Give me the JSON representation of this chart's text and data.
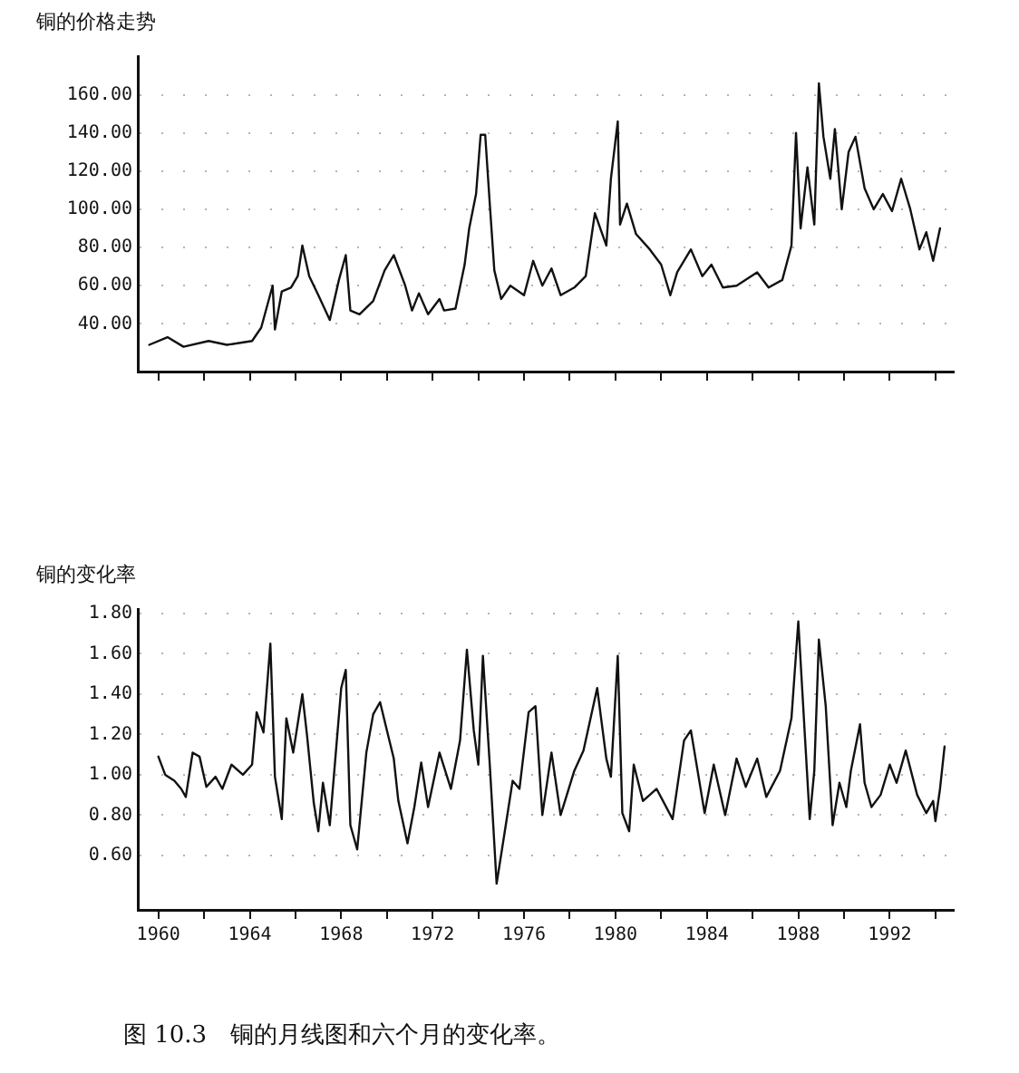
{
  "chart_data": [
    {
      "type": "line",
      "title": "铜的价格走势",
      "tick_labels": "y",
      "grid": "y",
      "marker": "none",
      "line_style": "solid",
      "xlim": [
        1959.1,
        1994.8
      ],
      "ylim": [
        15,
        180
      ],
      "xticks": [
        {
          "value": 1960,
          "label": null
        },
        {
          "value": 1962,
          "label": null
        },
        {
          "value": 1964,
          "label": null
        },
        {
          "value": 1966,
          "label": null
        },
        {
          "value": 1968,
          "label": null
        },
        {
          "value": 1970,
          "label": null
        },
        {
          "value": 1972,
          "label": null
        },
        {
          "value": 1974,
          "label": null
        },
        {
          "value": 1976,
          "label": null
        },
        {
          "value": 1978,
          "label": null
        },
        {
          "value": 1980,
          "label": null
        },
        {
          "value": 1982,
          "label": null
        },
        {
          "value": 1984,
          "label": null
        },
        {
          "value": 1986,
          "label": null
        },
        {
          "value": 1988,
          "label": null
        },
        {
          "value": 1990,
          "label": null
        },
        {
          "value": 1992,
          "label": null
        },
        {
          "value": 1994,
          "label": null
        }
      ],
      "yticks": [
        {
          "value": 40,
          "label": "40.00"
        },
        {
          "value": 60,
          "label": "60.00"
        },
        {
          "value": 80,
          "label": "80.00"
        },
        {
          "value": 100,
          "label": "100.00"
        },
        {
          "value": 120,
          "label": "120.00"
        },
        {
          "value": 140,
          "label": "140.00"
        },
        {
          "value": 160,
          "label": "160.00"
        }
      ],
      "series": [
        {
          "color": "#111111",
          "x": [
            1959.6,
            1960.4,
            1961.1,
            1962.2,
            1963.0,
            1964.1,
            1964.5,
            1965.0,
            1965.1,
            1965.4,
            1965.8,
            1966.1,
            1966.3,
            1966.6,
            1967.0,
            1967.5,
            1967.9,
            1968.2,
            1968.4,
            1968.8,
            1969.4,
            1969.9,
            1970.3,
            1970.8,
            1971.1,
            1971.4,
            1971.8,
            1972.3,
            1972.5,
            1973.0,
            1973.4,
            1973.6,
            1973.9,
            1974.1,
            1974.3,
            1974.5,
            1974.7,
            1975.0,
            1975.4,
            1976.0,
            1976.4,
            1976.8,
            1977.2,
            1977.6,
            1978.2,
            1978.7,
            1979.1,
            1979.6,
            1979.8,
            1980.1,
            1980.2,
            1980.5,
            1980.9,
            1981.5,
            1982.0,
            1982.4,
            1982.7,
            1983.3,
            1983.8,
            1984.2,
            1984.7,
            1985.3,
            1986.2,
            1986.7,
            1987.3,
            1987.7,
            1987.9,
            1988.1,
            1988.4,
            1988.7,
            1988.9,
            1989.1,
            1989.4,
            1989.6,
            1989.9,
            1990.2,
            1990.5,
            1990.9,
            1991.3,
            1991.7,
            1992.1,
            1992.5,
            1992.9,
            1993.3,
            1993.6,
            1993.9,
            1994.2
          ],
          "values": [
            29,
            33,
            28,
            31,
            29,
            31,
            38,
            60,
            37,
            57,
            59,
            65,
            81,
            65,
            55,
            42,
            63,
            76,
            47,
            45,
            52,
            68,
            76,
            60,
            47,
            56,
            45,
            53,
            47,
            48,
            71,
            90,
            108,
            139,
            139,
            103,
            68,
            53,
            60,
            55,
            73,
            60,
            69,
            55,
            59,
            65,
            98,
            81,
            116,
            146,
            92,
            103,
            87,
            79,
            71,
            55,
            67,
            79,
            65,
            71,
            59,
            60,
            67,
            59,
            63,
            81,
            140,
            90,
            122,
            92,
            166,
            138,
            116,
            142,
            100,
            130,
            138,
            111,
            100,
            108,
            99,
            116,
            100,
            79,
            88,
            73,
            90
          ]
        }
      ]
    },
    {
      "type": "line",
      "title": "铜的变化率",
      "grid": "y",
      "marker": "none",
      "line_style": "solid",
      "xlim": [
        1959.1,
        1994.8
      ],
      "ylim": [
        0.33,
        1.82
      ],
      "xticks": [
        1960,
        {
          "value": 1962,
          "label": null
        },
        1964,
        {
          "value": 1966,
          "label": null
        },
        1968,
        {
          "value": 1970,
          "label": null
        },
        1972,
        {
          "value": 1974,
          "label": null
        },
        1976,
        {
          "value": 1978,
          "label": null
        },
        1980,
        {
          "value": 1982,
          "label": null
        },
        1984,
        {
          "value": 1986,
          "label": null
        },
        1988,
        {
          "value": 1990,
          "label": null
        },
        1992,
        {
          "value": 1994,
          "label": null
        }
      ],
      "yticks": [
        {
          "value": 0.6,
          "label": "0.60"
        },
        {
          "value": 0.8,
          "label": "0.80"
        },
        {
          "value": 1.0,
          "label": "1.00"
        },
        {
          "value": 1.2,
          "label": "1.20"
        },
        {
          "value": 1.4,
          "label": "1.40"
        },
        {
          "value": 1.6,
          "label": "1.60"
        },
        {
          "value": 1.8,
          "label": "1.80"
        }
      ],
      "annotations": [
        "图 10.3　铜的月线图和六个月的变化率。"
      ],
      "series": [
        {
          "color": "#111111",
          "x": [
            1960.0,
            1960.3,
            1960.7,
            1961.0,
            1961.2,
            1961.5,
            1961.8,
            1962.1,
            1962.5,
            1962.8,
            1963.2,
            1963.7,
            1964.1,
            1964.3,
            1964.6,
            1964.9,
            1965.1,
            1965.4,
            1965.6,
            1965.9,
            1966.3,
            1966.5,
            1966.8,
            1967.0,
            1967.2,
            1967.5,
            1968.0,
            1968.2,
            1968.4,
            1968.7,
            1969.1,
            1969.4,
            1969.7,
            1970.0,
            1970.3,
            1970.5,
            1970.9,
            1971.2,
            1971.5,
            1971.8,
            1972.3,
            1972.8,
            1973.2,
            1973.5,
            1973.8,
            1974.0,
            1974.2,
            1974.5,
            1974.8,
            1975.2,
            1975.5,
            1975.8,
            1976.2,
            1976.5,
            1976.8,
            1977.2,
            1977.6,
            1978.2,
            1978.6,
            1979.2,
            1979.6,
            1979.8,
            1980.1,
            1980.3,
            1980.6,
            1980.8,
            1981.2,
            1981.8,
            1982.5,
            1983.0,
            1983.3,
            1983.9,
            1984.3,
            1984.8,
            1985.3,
            1985.7,
            1986.2,
            1986.6,
            1987.2,
            1987.7,
            1988.0,
            1988.3,
            1988.5,
            1988.7,
            1988.9,
            1989.2,
            1989.5,
            1989.8,
            1990.1,
            1990.3,
            1990.7,
            1990.9,
            1991.2,
            1991.6,
            1992.0,
            1992.3,
            1992.7,
            1993.2,
            1993.6,
            1993.9,
            1994.0,
            1994.2,
            1994.4
          ],
          "values": [
            1.09,
            1.0,
            0.97,
            0.93,
            0.89,
            1.11,
            1.09,
            0.94,
            0.99,
            0.93,
            1.05,
            1.0,
            1.05,
            1.31,
            1.21,
            1.65,
            0.99,
            0.78,
            1.28,
            1.11,
            1.4,
            1.2,
            0.86,
            0.72,
            0.96,
            0.75,
            1.43,
            1.52,
            0.75,
            0.63,
            1.11,
            1.3,
            1.36,
            1.22,
            1.08,
            0.87,
            0.66,
            0.84,
            1.06,
            0.84,
            1.11,
            0.93,
            1.17,
            1.62,
            1.22,
            1.05,
            1.59,
            1.05,
            0.46,
            0.75,
            0.97,
            0.93,
            1.31,
            1.34,
            0.8,
            1.11,
            0.8,
            1.02,
            1.12,
            1.43,
            1.08,
            0.99,
            1.59,
            0.81,
            0.72,
            1.05,
            0.87,
            0.93,
            0.78,
            1.17,
            1.22,
            0.81,
            1.05,
            0.8,
            1.08,
            0.94,
            1.08,
            0.89,
            1.02,
            1.28,
            1.76,
            1.17,
            0.78,
            1.02,
            1.67,
            1.34,
            0.75,
            0.96,
            0.84,
            1.02,
            1.25,
            0.96,
            0.84,
            0.9,
            1.05,
            0.96,
            1.12,
            0.9,
            0.81,
            0.87,
            0.77,
            0.93,
            1.14
          ]
        }
      ]
    }
  ]
}
